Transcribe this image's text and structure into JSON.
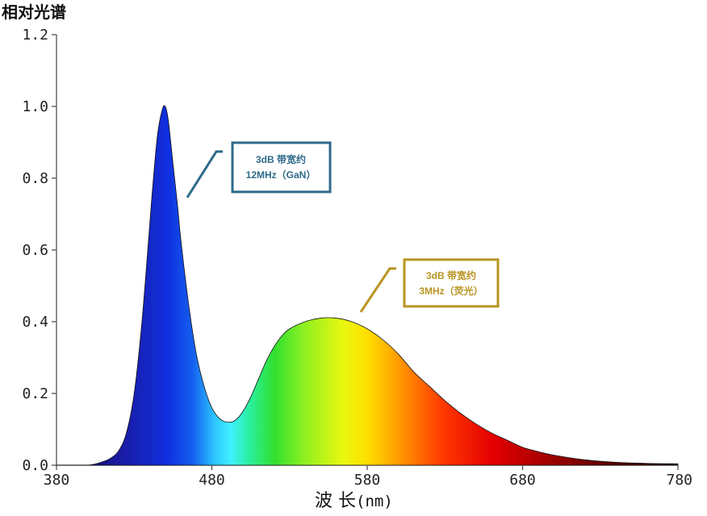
{
  "chart_data": {
    "type": "area",
    "ylabel": "相对光谱",
    "xlabel_main": "波 长",
    "xlabel_unit": "(nm)",
    "xlim": [
      380,
      780
    ],
    "ylim": [
      0,
      1.2
    ],
    "x_ticks": [
      "380",
      "480",
      "580",
      "680",
      "780"
    ],
    "y_ticks": [
      "0.0",
      "0.2",
      "0.4",
      "0.6",
      "0.8",
      "1.0",
      "1.2"
    ],
    "series": [
      {
        "x": [
          380,
          400,
          410,
          415,
          420,
          425,
          430,
          435,
          440,
          442,
          445,
          448,
          450,
          452,
          455,
          458,
          460,
          465,
          470,
          475,
          480,
          485,
          490,
          495,
          500,
          505,
          510,
          515,
          520,
          525,
          530,
          540,
          550,
          560,
          570,
          580,
          590,
          600,
          610,
          620,
          630,
          640,
          650,
          660,
          670,
          680,
          690,
          700,
          720,
          740,
          760,
          780
        ],
        "values": [
          0.0,
          0.0,
          0.01,
          0.02,
          0.04,
          0.09,
          0.2,
          0.4,
          0.67,
          0.78,
          0.92,
          0.99,
          1.0,
          0.96,
          0.84,
          0.72,
          0.63,
          0.45,
          0.31,
          0.22,
          0.16,
          0.13,
          0.12,
          0.125,
          0.15,
          0.19,
          0.24,
          0.29,
          0.33,
          0.36,
          0.38,
          0.4,
          0.41,
          0.41,
          0.4,
          0.38,
          0.35,
          0.31,
          0.26,
          0.22,
          0.18,
          0.145,
          0.115,
          0.09,
          0.07,
          0.05,
          0.038,
          0.028,
          0.015,
          0.008,
          0.005,
          0.004
        ]
      }
    ],
    "annotations": [
      {
        "line1": "3dB 带宽约",
        "line2": "12MHz（GaN）",
        "color": "#2e6a8a"
      },
      {
        "line1": "3dB 带宽约",
        "line2": "3MHz（荧光）",
        "color": "#b89422"
      }
    ],
    "grid": false,
    "fill": "spectral gradient"
  }
}
